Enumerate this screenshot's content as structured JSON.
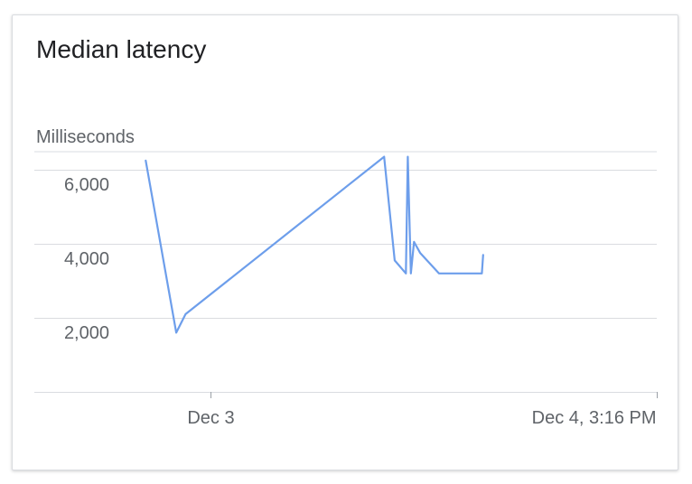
{
  "card": {
    "title": "Median latency"
  },
  "chart_data": {
    "type": "line",
    "title": "Median latency",
    "ylabel": "Milliseconds",
    "xlabel": "",
    "ylim": [
      0,
      6500
    ],
    "yticks": [
      {
        "value": 2000,
        "label": "2,000"
      },
      {
        "value": 4000,
        "label": "4,000"
      },
      {
        "value": 6000,
        "label": "6,000"
      }
    ],
    "xticks": [
      {
        "value": 0.283,
        "label": "Dec 3"
      },
      {
        "value": 1.0,
        "label": "Dec 4, 3:16 PM"
      }
    ],
    "grid": true,
    "accent_color": "#6d9eeb",
    "series": [
      {
        "x": [
          0.179,
          0.228,
          0.243,
          0.562,
          0.579,
          0.597,
          0.6,
          0.605,
          0.61,
          0.62,
          0.65,
          0.719,
          0.721
        ],
        "y": [
          6250,
          1600,
          2100,
          6350,
          3550,
          3200,
          6350,
          3200,
          4050,
          3750,
          3200,
          3200,
          3700
        ]
      }
    ]
  }
}
